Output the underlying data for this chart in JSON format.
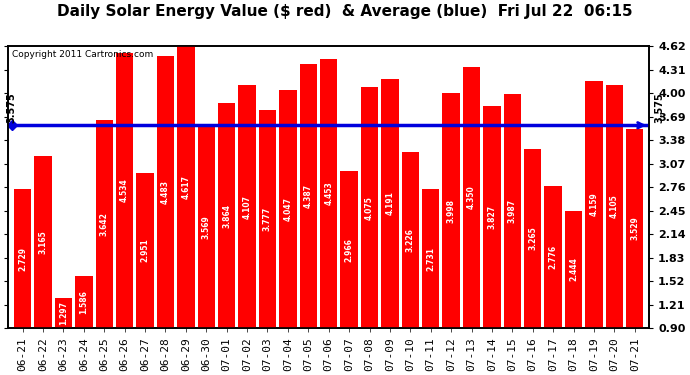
{
  "title": "Daily Solar Energy Value ($ red)  & Average (blue)  Fri Jul 22  06:15",
  "copyright": "Copyright 2011 Cartronics.com",
  "average": 3.575,
  "average_label": "3.575",
  "bar_color": "#FF0000",
  "avg_line_color": "#0000DD",
  "fig_bg_color": "#FFFFFF",
  "plot_bg_color": "#FFFFFF",
  "ylim": [
    0.9,
    4.62
  ],
  "yticks": [
    0.9,
    1.21,
    1.52,
    1.83,
    2.14,
    2.45,
    2.76,
    3.07,
    3.38,
    3.69,
    4.0,
    4.31,
    4.62
  ],
  "categories": [
    "06-21",
    "06-22",
    "06-23",
    "06-24",
    "06-25",
    "06-26",
    "06-27",
    "06-28",
    "06-29",
    "06-30",
    "07-01",
    "07-02",
    "07-03",
    "07-04",
    "07-05",
    "07-06",
    "07-07",
    "07-08",
    "07-09",
    "07-10",
    "07-11",
    "07-12",
    "07-13",
    "07-14",
    "07-15",
    "07-16",
    "07-17",
    "07-18",
    "07-19",
    "07-20",
    "07-21"
  ],
  "values": [
    2.729,
    3.165,
    1.297,
    1.586,
    3.642,
    4.534,
    2.951,
    4.483,
    4.617,
    3.569,
    3.864,
    4.107,
    3.777,
    4.047,
    4.387,
    4.453,
    2.966,
    4.075,
    4.191,
    3.226,
    2.731,
    3.998,
    4.35,
    3.827,
    3.987,
    3.265,
    2.776,
    2.444,
    4.159,
    4.105,
    3.529
  ],
  "title_fontsize": 11,
  "tick_fontsize": 8,
  "bar_label_fontsize": 5.5,
  "copyright_fontsize": 6.5
}
